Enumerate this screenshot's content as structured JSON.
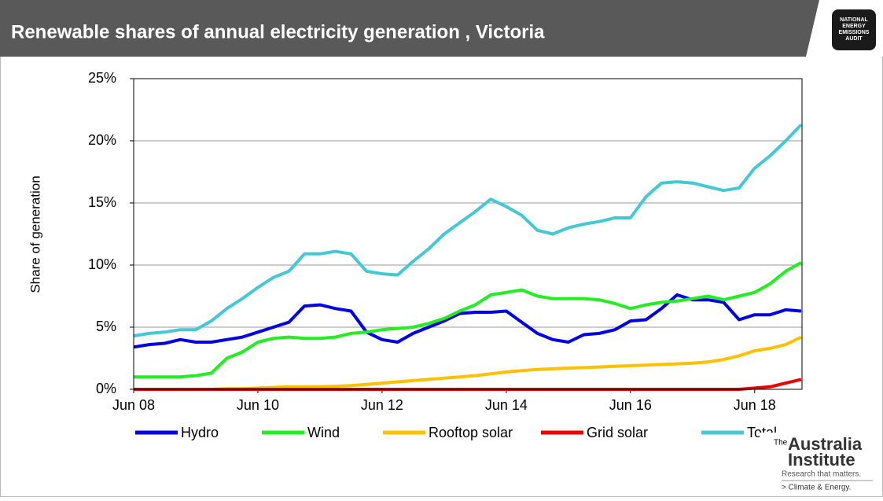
{
  "chart_data": {
    "type": "line",
    "title": "Renewable shares of annual electricity generation ,  Victoria",
    "y_label": "Share of generation",
    "categories": [
      "Jun 08",
      null,
      null,
      null,
      null,
      null,
      null,
      null,
      "Jun 10",
      null,
      null,
      null,
      null,
      null,
      null,
      null,
      "Jun 12",
      null,
      null,
      null,
      null,
      null,
      null,
      null,
      "Jun 14",
      null,
      null,
      null,
      null,
      null,
      null,
      null,
      "Jun 16",
      null,
      null,
      null,
      null,
      null,
      null,
      null,
      "Jun 18",
      null,
      null,
      null
    ],
    "series": [
      {
        "name": "Hydro",
        "color": "#0000e6",
        "values": [
          3.4,
          3.6,
          3.7,
          4.0,
          3.8,
          3.8,
          4.0,
          4.2,
          4.6,
          5.0,
          5.4,
          6.7,
          6.8,
          6.5,
          6.3,
          4.6,
          4.0,
          3.8,
          4.5,
          5.0,
          5.5,
          6.1,
          6.2,
          6.2,
          6.3,
          5.4,
          4.5,
          4.0,
          3.8,
          4.4,
          4.5,
          4.8,
          5.5,
          5.6,
          6.5,
          7.6,
          7.2,
          7.2,
          7.0,
          5.6,
          6.0,
          6.0,
          6.4,
          6.3
        ]
      },
      {
        "name": "Wind",
        "color": "#22ee22",
        "values": [
          1.0,
          1.0,
          1.0,
          1.0,
          1.1,
          1.3,
          2.5,
          3.0,
          3.8,
          4.1,
          4.2,
          4.1,
          4.1,
          4.2,
          4.5,
          4.6,
          4.8,
          4.9,
          5.0,
          5.3,
          5.7,
          6.3,
          6.8,
          7.6,
          7.8,
          8.0,
          7.5,
          7.3,
          7.3,
          7.3,
          7.2,
          6.9,
          6.5,
          6.8,
          7.0,
          7.1,
          7.3,
          7.5,
          7.2,
          7.5,
          7.8,
          8.5,
          9.5,
          10.2
        ]
      },
      {
        "name": "Rooftop solar",
        "color": "#ffc000",
        "values": [
          0.0,
          0.0,
          0.0,
          0.0,
          0.0,
          0.0,
          0.05,
          0.05,
          0.1,
          0.15,
          0.2,
          0.2,
          0.2,
          0.25,
          0.3,
          0.4,
          0.5,
          0.6,
          0.7,
          0.8,
          0.9,
          1.0,
          1.1,
          1.25,
          1.4,
          1.5,
          1.6,
          1.65,
          1.7,
          1.75,
          1.8,
          1.85,
          1.9,
          1.95,
          2.0,
          2.05,
          2.1,
          2.2,
          2.4,
          2.7,
          3.1,
          3.3,
          3.6,
          4.2
        ]
      },
      {
        "name": "Grid solar",
        "color": "#ee0000",
        "values": [
          0.0,
          0.0,
          0.0,
          0.0,
          0.0,
          0.0,
          0.0,
          0.0,
          0.0,
          0.0,
          0.0,
          0.0,
          0.0,
          0.0,
          0.0,
          0.0,
          0.0,
          0.0,
          0.0,
          0.0,
          0.0,
          0.0,
          0.0,
          0.0,
          0.0,
          0.0,
          0.0,
          0.0,
          0.0,
          0.0,
          0.0,
          0.0,
          0.0,
          0.0,
          0.0,
          0.0,
          0.0,
          0.0,
          0.0,
          0.0,
          0.1,
          0.2,
          0.5,
          0.8
        ]
      },
      {
        "name": "Total",
        "color": "#44c8d4",
        "values": [
          4.3,
          4.5,
          4.6,
          4.8,
          4.8,
          5.5,
          6.5,
          7.3,
          8.2,
          9.0,
          9.5,
          10.9,
          10.9,
          11.1,
          10.9,
          9.5,
          9.3,
          9.2,
          10.3,
          11.3,
          12.5,
          13.4,
          14.3,
          15.3,
          14.7,
          14.0,
          12.8,
          12.5,
          13.0,
          13.3,
          13.5,
          13.8,
          13.8,
          15.5,
          16.6,
          16.7,
          16.6,
          16.3,
          16.0,
          16.2,
          17.8,
          18.8,
          20.0,
          21.3
        ]
      }
    ],
    "ylim": [
      0,
      25
    ],
    "yticks": [
      {
        "value": 0,
        "label": "0%"
      },
      {
        "value": 5,
        "label": "5%"
      },
      {
        "value": 10,
        "label": "10%"
      },
      {
        "value": 15,
        "label": "15%"
      },
      {
        "value": 20,
        "label": "20%"
      },
      {
        "value": 25,
        "label": "25%"
      }
    ],
    "grid": true,
    "legend": "bottom"
  },
  "header_logo": [
    "NATIONAL",
    "ENERGY",
    "EMISSIONS",
    "AUDIT"
  ],
  "footer_logo": {
    "prefix": "The",
    "line1": "Australia",
    "line2": "Institute",
    "tagline": "Research that matters.",
    "program": "> Climate & Energy."
  }
}
